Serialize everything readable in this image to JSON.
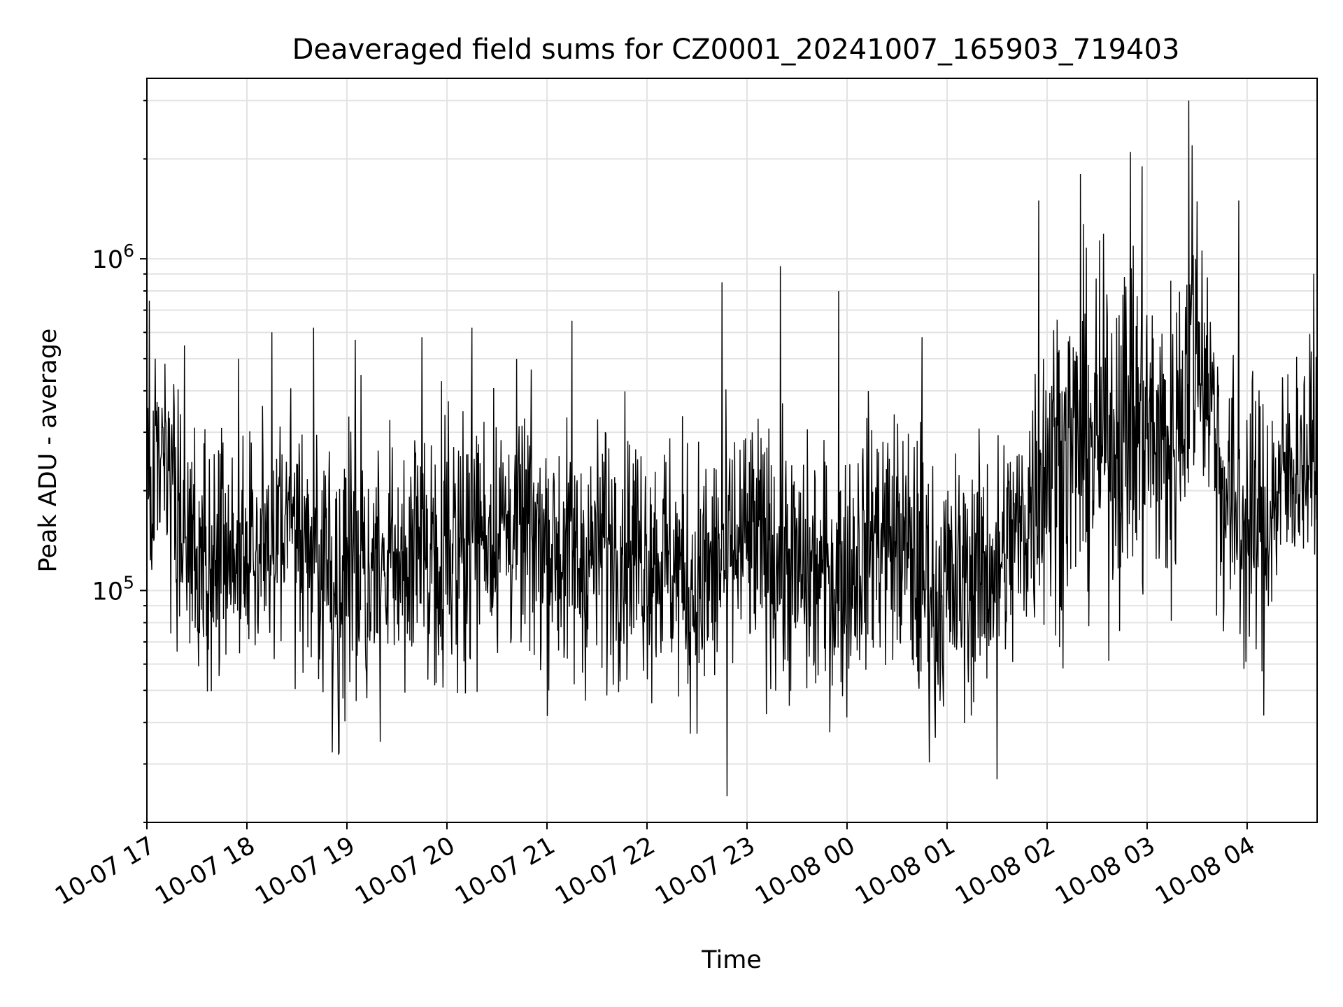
{
  "chart_data": {
    "type": "line",
    "title": "Deaveraged field sums for CZ0001_20241007_165903_719403",
    "xlabel": "Time",
    "ylabel": "Peak ADU - average",
    "yscale": "log",
    "x_range": [
      "2024-10-07 17:00",
      "2024-10-08 04:42"
    ],
    "ylim": [
      20000,
      3500000
    ],
    "grid": true,
    "line_color": "#000000",
    "x_ticks": [
      {
        "time": "2024-10-07 17:00",
        "label": "10-07 17"
      },
      {
        "time": "2024-10-07 18:00",
        "label": "10-07 18"
      },
      {
        "time": "2024-10-07 19:00",
        "label": "10-07 19"
      },
      {
        "time": "2024-10-07 20:00",
        "label": "10-07 20"
      },
      {
        "time": "2024-10-07 21:00",
        "label": "10-07 21"
      },
      {
        "time": "2024-10-07 22:00",
        "label": "10-07 22"
      },
      {
        "time": "2024-10-07 23:00",
        "label": "10-07 23"
      },
      {
        "time": "2024-10-08 00:00",
        "label": "10-08 00"
      },
      {
        "time": "2024-10-08 01:00",
        "label": "10-08 01"
      },
      {
        "time": "2024-10-08 02:00",
        "label": "10-08 02"
      },
      {
        "time": "2024-10-08 03:00",
        "label": "10-08 03"
      },
      {
        "time": "2024-10-08 04:00",
        "label": "10-08 04"
      }
    ],
    "y_major_ticks": [
      {
        "value": 100000,
        "base": "10",
        "exp": "5"
      },
      {
        "value": 1000000,
        "base": "10",
        "exp": "6"
      }
    ],
    "series": [
      {
        "envelope": {
          "x": [
            "2024-10-07 17:00",
            "2024-10-07 17:15",
            "2024-10-07 17:30",
            "2024-10-07 17:45",
            "2024-10-07 18:00",
            "2024-10-07 18:15",
            "2024-10-07 18:30",
            "2024-10-07 18:45",
            "2024-10-07 19:00",
            "2024-10-07 19:15",
            "2024-10-07 19:30",
            "2024-10-07 19:45",
            "2024-10-07 20:00",
            "2024-10-07 20:15",
            "2024-10-07 20:30",
            "2024-10-07 20:45",
            "2024-10-07 21:00",
            "2024-10-07 21:15",
            "2024-10-07 21:30",
            "2024-10-07 21:45",
            "2024-10-07 22:00",
            "2024-10-07 22:15",
            "2024-10-07 22:30",
            "2024-10-07 22:45",
            "2024-10-07 23:00",
            "2024-10-07 23:15",
            "2024-10-07 23:30",
            "2024-10-07 23:45",
            "2024-10-08 00:00",
            "2024-10-08 00:15",
            "2024-10-08 00:30",
            "2024-10-08 00:45",
            "2024-10-08 01:00",
            "2024-10-08 01:15",
            "2024-10-08 01:30",
            "2024-10-08 01:45",
            "2024-10-08 02:00",
            "2024-10-08 02:15",
            "2024-10-08 02:30",
            "2024-10-08 02:45",
            "2024-10-08 03:00",
            "2024-10-08 03:15",
            "2024-10-08 03:30",
            "2024-10-08 03:45",
            "2024-10-08 04:00",
            "2024-10-08 04:15",
            "2024-10-08 04:30",
            "2024-10-08 04:42"
          ],
          "center": [
            220000,
            200000,
            110000,
            120000,
            130000,
            150000,
            170000,
            120000,
            110000,
            110000,
            120000,
            130000,
            140000,
            150000,
            160000,
            150000,
            140000,
            120000,
            130000,
            140000,
            130000,
            120000,
            100000,
            120000,
            140000,
            130000,
            110000,
            110000,
            110000,
            150000,
            140000,
            110000,
            100000,
            110000,
            120000,
            150000,
            250000,
            270000,
            280000,
            320000,
            300000,
            260000,
            600000,
            200000,
            150000,
            180000,
            250000,
            240000
          ],
          "spread": [
            0.35,
            0.35,
            0.4,
            0.35,
            0.35,
            0.35,
            0.35,
            0.35,
            0.4,
            0.35,
            0.35,
            0.35,
            0.35,
            0.35,
            0.35,
            0.35,
            0.35,
            0.35,
            0.35,
            0.35,
            0.35,
            0.35,
            0.4,
            0.35,
            0.35,
            0.35,
            0.35,
            0.35,
            0.35,
            0.35,
            0.35,
            0.4,
            0.35,
            0.35,
            0.35,
            0.35,
            0.45,
            0.45,
            0.45,
            0.5,
            0.45,
            0.45,
            0.4,
            0.4,
            0.4,
            0.35,
            0.3,
            0.3
          ]
        },
        "spikes": [
          {
            "time": "2024-10-07 17:05",
            "value": 500000
          },
          {
            "time": "2024-10-07 17:55",
            "value": 500000
          },
          {
            "time": "2024-10-07 18:15",
            "value": 600000
          },
          {
            "time": "2024-10-07 18:40",
            "value": 620000
          },
          {
            "time": "2024-10-07 19:05",
            "value": 570000
          },
          {
            "time": "2024-10-07 19:45",
            "value": 580000
          },
          {
            "time": "2024-10-07 20:15",
            "value": 620000
          },
          {
            "time": "2024-10-07 21:15",
            "value": 650000
          },
          {
            "time": "2024-10-07 22:45",
            "value": 850000
          },
          {
            "time": "2024-10-07 23:20",
            "value": 950000
          },
          {
            "time": "2024-10-07 23:55",
            "value": 800000
          },
          {
            "time": "2024-10-08 00:45",
            "value": 580000
          },
          {
            "time": "2024-10-08 01:55",
            "value": 1500000
          },
          {
            "time": "2024-10-08 02:20",
            "value": 1800000
          },
          {
            "time": "2024-10-08 02:50",
            "value": 2100000
          },
          {
            "time": "2024-10-08 02:57",
            "value": 1900000
          },
          {
            "time": "2024-10-08 03:25",
            "value": 3000000
          },
          {
            "time": "2024-10-08 03:27",
            "value": 2200000
          },
          {
            "time": "2024-10-08 03:55",
            "value": 1500000
          },
          {
            "time": "2024-10-08 04:40",
            "value": 900000
          },
          {
            "time": "2024-10-07 21:35",
            "value": 300000
          },
          {
            "time": "2024-10-07 18:55",
            "value": 32000
          },
          {
            "time": "2024-10-07 19:20",
            "value": 35000
          },
          {
            "time": "2024-10-07 22:30",
            "value": 37000
          },
          {
            "time": "2024-10-07 22:48",
            "value": 24000
          },
          {
            "time": "2024-10-08 00:53",
            "value": 36000
          },
          {
            "time": "2024-10-08 01:30",
            "value": 27000
          },
          {
            "time": "2024-10-08 04:10",
            "value": 42000
          }
        ]
      }
    ]
  }
}
